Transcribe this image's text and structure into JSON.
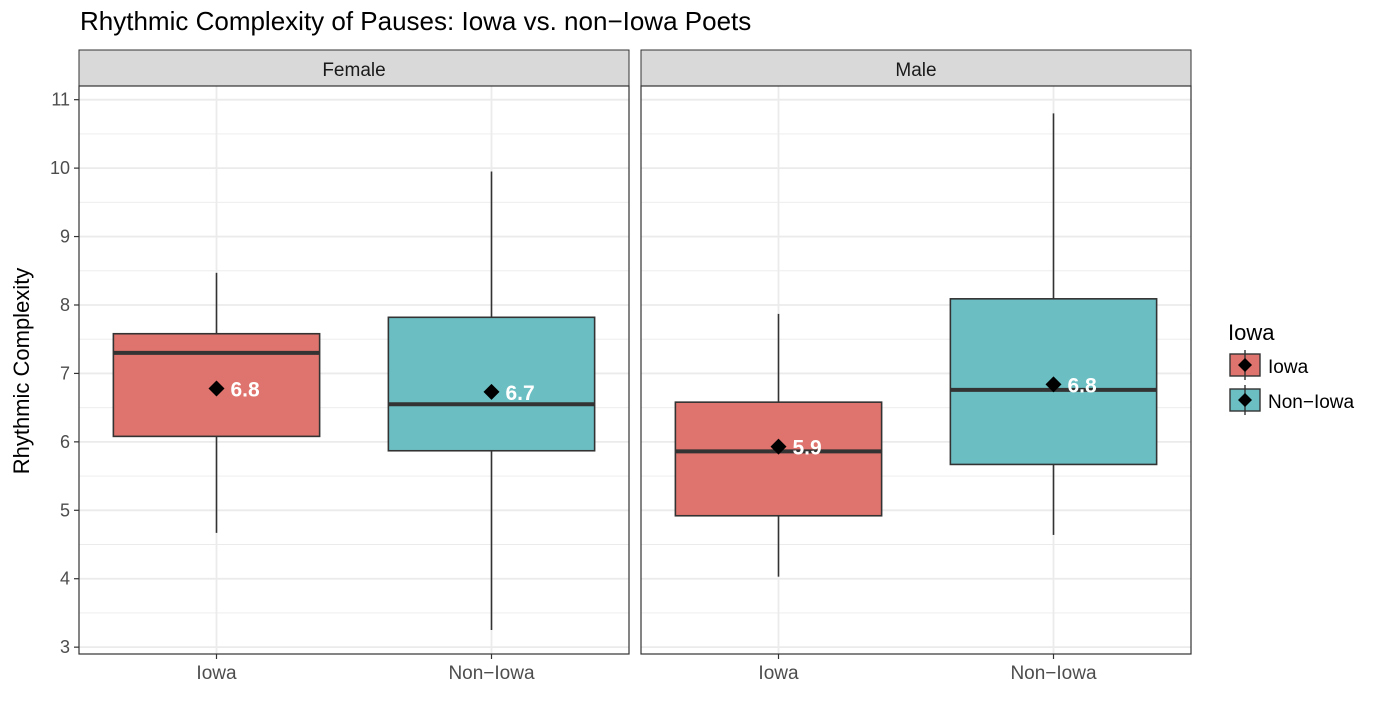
{
  "chart_data": {
    "type": "box",
    "title": "Rhythmic Complexity of Pauses: Iowa vs. non−Iowa Poets",
    "ylabel": "Rhythmic Complexity",
    "xlabel": "",
    "ylim": [
      2.9,
      11.2
    ],
    "yticks": [
      3,
      4,
      5,
      6,
      7,
      8,
      9,
      10,
      11
    ],
    "grid": true,
    "categories": [
      "Iowa",
      "Non−Iowa"
    ],
    "facets": [
      {
        "name": "Female",
        "boxes": [
          {
            "group": "Iowa",
            "min": 4.67,
            "q1": 6.08,
            "median": 7.3,
            "q3": 7.58,
            "max": 8.47,
            "mean": 6.78,
            "mean_label": "6.8"
          },
          {
            "group": "Non−Iowa",
            "min": 3.25,
            "q1": 5.87,
            "median": 6.55,
            "q3": 7.82,
            "max": 9.95,
            "mean": 6.73,
            "mean_label": "6.7"
          }
        ]
      },
      {
        "name": "Male",
        "boxes": [
          {
            "group": "Iowa",
            "min": 4.03,
            "q1": 4.92,
            "median": 5.86,
            "q3": 6.58,
            "max": 7.87,
            "mean": 5.93,
            "mean_label": "5.9"
          },
          {
            "group": "Non−Iowa",
            "min": 4.64,
            "q1": 5.67,
            "median": 6.76,
            "q3": 8.09,
            "max": 10.8,
            "mean": 6.84,
            "mean_label": "6.8"
          }
        ]
      }
    ],
    "legend": {
      "title": "Iowa",
      "position": "right",
      "entries": [
        {
          "label": "Iowa",
          "color": "#DF736D"
        },
        {
          "label": "Non−Iowa",
          "color": "#6BBFC3"
        }
      ]
    },
    "colors": {
      "Iowa": "#DF736D",
      "Non−Iowa": "#6BBFC3"
    }
  }
}
